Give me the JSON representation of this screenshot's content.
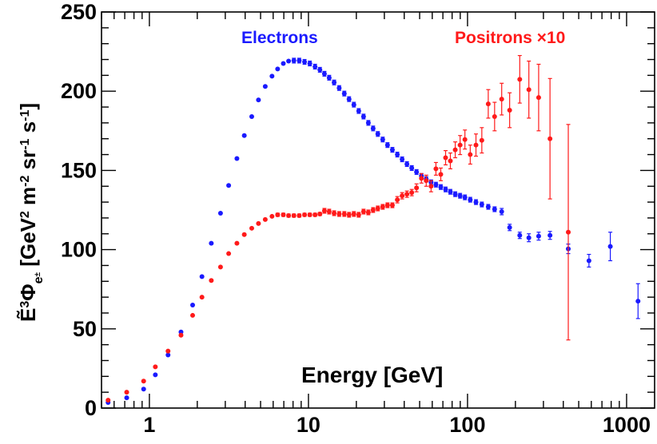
{
  "chart_data": {
    "type": "scatter",
    "xlabel": "Energy [GeV]",
    "ylabel": {
      "prefix": "Ẽ",
      "power": "3",
      "symbol": "Φ",
      "subscript": "e",
      "subsub": "±",
      "units_open": " [GeV",
      "units_pow1": "2",
      "units_mid1": " m",
      "units_pow2": "-2",
      "units_mid2": " sr",
      "units_pow3": "-1",
      "units_mid3": " s",
      "units_pow4": "-1",
      "units_close": "]"
    },
    "x_scale": "log",
    "xlim": [
      0.5,
      1500
    ],
    "ylim": [
      0,
      250
    ],
    "x_ticks": [
      {
        "value": 1,
        "label": "1"
      },
      {
        "value": 10,
        "label": "10"
      },
      {
        "value": 100,
        "label": "100"
      },
      {
        "value": 1000,
        "label": "1000"
      }
    ],
    "y_ticks": [
      {
        "value": 0,
        "label": "0"
      },
      {
        "value": 50,
        "label": "50"
      },
      {
        "value": 100,
        "label": "100"
      },
      {
        "value": 150,
        "label": "150"
      },
      {
        "value": 200,
        "label": "200"
      },
      {
        "value": 250,
        "label": "250"
      }
    ],
    "series": [
      {
        "name": "Electrons",
        "color": "#1a1aff",
        "points": [
          [
            0.55,
            3.5,
            0
          ],
          [
            0.72,
            6.5,
            0
          ],
          [
            0.92,
            12,
            0
          ],
          [
            1.09,
            21,
            0
          ],
          [
            1.31,
            33.5,
            0
          ],
          [
            1.58,
            48,
            0
          ],
          [
            1.87,
            65,
            0
          ],
          [
            2.14,
            83,
            0
          ],
          [
            2.45,
            104,
            0
          ],
          [
            2.8,
            123,
            0
          ],
          [
            3.15,
            140.5,
            0
          ],
          [
            3.55,
            157.5,
            0
          ],
          [
            3.95,
            172,
            0
          ],
          [
            4.4,
            184,
            0
          ],
          [
            4.85,
            194.5,
            0
          ],
          [
            5.35,
            203,
            0
          ],
          [
            5.9,
            209.5,
            0
          ],
          [
            6.4,
            214,
            0
          ],
          [
            6.95,
            217.5,
            0
          ],
          [
            7.5,
            219,
            0
          ],
          [
            8.1,
            219.3,
            1.5
          ],
          [
            8.75,
            219.3,
            1.5
          ],
          [
            9.45,
            218.5,
            1.5
          ],
          [
            10.2,
            217.5,
            1.5
          ],
          [
            11,
            215.5,
            1.5
          ],
          [
            11.8,
            213.5,
            1.5
          ],
          [
            12.6,
            211,
            1.5
          ],
          [
            13.5,
            208.5,
            1.5
          ],
          [
            14.5,
            205.5,
            1.5
          ],
          [
            15.6,
            202,
            1.5
          ],
          [
            16.8,
            198.5,
            1.5
          ],
          [
            18,
            195,
            1.5
          ],
          [
            19.3,
            191.5,
            1.5
          ],
          [
            20.7,
            187.5,
            1.5
          ],
          [
            22.2,
            184,
            1.5
          ],
          [
            23.8,
            180,
            1.5
          ],
          [
            25.5,
            176.5,
            1.5
          ],
          [
            27.3,
            173,
            1.5
          ],
          [
            29.3,
            169.5,
            1.5
          ],
          [
            31.4,
            166,
            1.5
          ],
          [
            33.7,
            163,
            1.5
          ],
          [
            36.2,
            160,
            1.5
          ],
          [
            38.8,
            157,
            1.5
          ],
          [
            41.6,
            154,
            1.5
          ],
          [
            44.6,
            151.5,
            1.5
          ],
          [
            47.8,
            149,
            1.5
          ],
          [
            51.3,
            146.5,
            1.5
          ],
          [
            55,
            144.5,
            1.5
          ],
          [
            59,
            142.5,
            1.5
          ],
          [
            63.3,
            141,
            1.5
          ],
          [
            67.9,
            139.5,
            1.5
          ],
          [
            72.8,
            138,
            1.5
          ],
          [
            78,
            136.5,
            1.5
          ],
          [
            83.7,
            135,
            1.5
          ],
          [
            89.8,
            134,
            1.5
          ],
          [
            96.3,
            133,
            1.5
          ],
          [
            104,
            131.5,
            1.5
          ],
          [
            113,
            130,
            1.5
          ],
          [
            123,
            128.5,
            1.5
          ],
          [
            135,
            127,
            1.5
          ],
          [
            148,
            125.5,
            1.5
          ],
          [
            164,
            124,
            2
          ],
          [
            184,
            114,
            2
          ],
          [
            213,
            109,
            2
          ],
          [
            243,
            107.5,
            2.5
          ],
          [
            280,
            108.5,
            2.5
          ],
          [
            330,
            109,
            2.5
          ],
          [
            430,
            100.5,
            3
          ],
          [
            580,
            93,
            4
          ],
          [
            790,
            102,
            9
          ],
          [
            1180,
            67.5,
            11
          ]
        ]
      },
      {
        "name": "Positrons ×10",
        "color": "#ff1a1a",
        "points": [
          [
            0.55,
            5,
            0
          ],
          [
            0.72,
            10,
            0
          ],
          [
            0.92,
            17,
            0
          ],
          [
            1.09,
            26,
            0
          ],
          [
            1.31,
            36,
            0
          ],
          [
            1.58,
            46,
            0
          ],
          [
            1.87,
            58.5,
            0
          ],
          [
            2.14,
            70,
            0
          ],
          [
            2.45,
            80.5,
            0
          ],
          [
            2.8,
            89,
            0
          ],
          [
            3.15,
            97.5,
            0
          ],
          [
            3.55,
            104,
            0
          ],
          [
            3.95,
            109.5,
            0
          ],
          [
            4.4,
            113.5,
            0
          ],
          [
            4.85,
            116.5,
            0
          ],
          [
            5.35,
            119,
            0
          ],
          [
            5.9,
            121,
            0
          ],
          [
            6.4,
            122,
            1
          ],
          [
            6.95,
            122,
            1
          ],
          [
            7.5,
            121.5,
            1
          ],
          [
            8.1,
            121.5,
            1
          ],
          [
            8.75,
            121.5,
            1
          ],
          [
            9.45,
            122,
            1
          ],
          [
            10.2,
            122,
            1
          ],
          [
            11,
            122,
            1
          ],
          [
            11.8,
            122.5,
            1
          ],
          [
            12.6,
            124.5,
            1.5
          ],
          [
            13.5,
            124,
            1.5
          ],
          [
            14.5,
            123,
            1.5
          ],
          [
            15.6,
            122.5,
            1.5
          ],
          [
            16.8,
            122.5,
            1.5
          ],
          [
            18,
            122,
            1.5
          ],
          [
            19.3,
            122.5,
            1.5
          ],
          [
            20.7,
            122,
            1.5
          ],
          [
            22.2,
            124,
            1.5
          ],
          [
            23.8,
            123.5,
            1.5
          ],
          [
            25.5,
            125,
            1.5
          ],
          [
            27.3,
            126,
            1.5
          ],
          [
            29.3,
            127,
            1.5
          ],
          [
            31.4,
            128,
            1.5
          ],
          [
            33.7,
            128,
            1.5
          ],
          [
            36.2,
            131.5,
            2
          ],
          [
            38.8,
            134,
            2
          ],
          [
            41.6,
            135,
            2
          ],
          [
            44.6,
            136,
            2
          ],
          [
            47.8,
            139,
            2.5
          ],
          [
            51.3,
            145,
            3
          ],
          [
            55,
            143.5,
            3.5
          ],
          [
            59,
            140,
            3.5
          ],
          [
            63.3,
            151,
            4
          ],
          [
            67.9,
            147.5,
            4
          ],
          [
            72.8,
            158,
            4.5
          ],
          [
            78,
            156,
            5
          ],
          [
            83.7,
            163,
            5
          ],
          [
            89.8,
            166,
            6
          ],
          [
            96.3,
            169.5,
            6
          ],
          [
            104,
            160,
            6
          ],
          [
            113,
            166,
            7
          ],
          [
            123,
            169,
            8
          ],
          [
            135,
            192,
            9
          ],
          [
            148,
            184,
            9
          ],
          [
            164,
            195,
            10
          ],
          [
            184,
            188,
            11
          ],
          [
            213,
            207.5,
            15
          ],
          [
            243,
            201,
            18
          ],
          [
            280,
            196,
            21
          ],
          [
            330,
            170,
            38
          ],
          [
            430,
            111,
            68
          ]
        ]
      }
    ],
    "legend": {
      "electrons_label": "Electrons",
      "positrons_label": "Positrons ×10"
    }
  }
}
